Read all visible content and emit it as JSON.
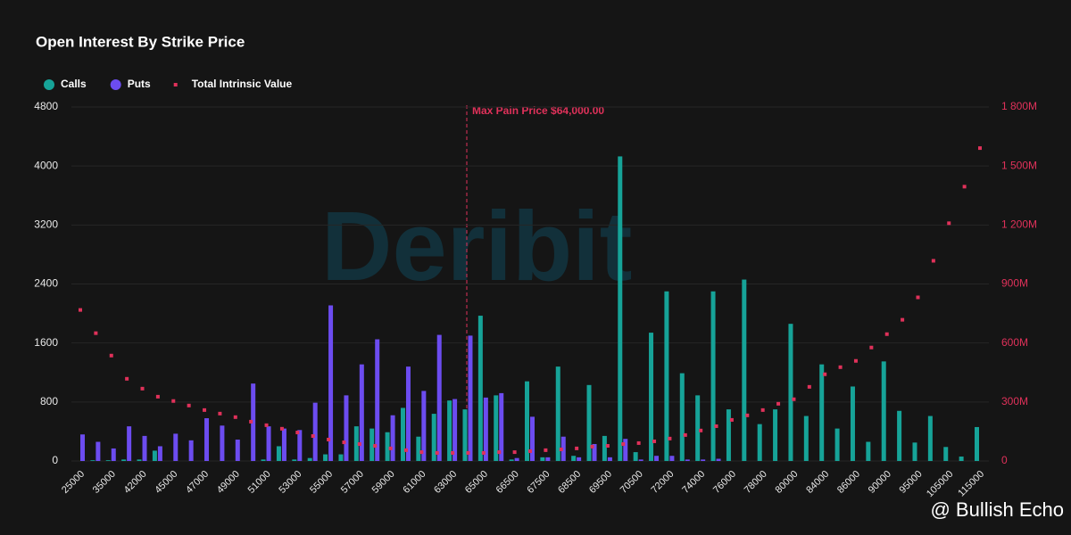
{
  "chart_data": {
    "type": "bar",
    "title": "Open Interest By Strike Price",
    "annotation": "Max Pain Price $64,000.00",
    "watermarks": [
      "Deribit",
      "@ Bullish Echo"
    ],
    "categories": [
      "25000",
      null,
      "35000",
      null,
      "42000",
      null,
      "45000",
      null,
      "47000",
      null,
      "49000",
      null,
      "51000",
      null,
      "53000",
      null,
      "55000",
      null,
      "57000",
      null,
      "59000",
      null,
      "61000",
      null,
      "63000",
      null,
      "65000",
      null,
      "66500",
      null,
      "67500",
      null,
      "68500",
      null,
      "69500",
      null,
      "70500",
      null,
      "72000",
      null,
      "74000",
      null,
      "76000",
      null,
      "78000",
      null,
      "80000",
      null,
      "84000",
      null,
      "86000",
      null,
      "90000",
      null,
      "95000",
      null,
      "105000",
      null,
      "115000"
    ],
    "series": [
      {
        "name": "Calls",
        "color": "#16a398",
        "values": [
          0,
          10,
          10,
          20,
          20,
          140,
          0,
          0,
          0,
          0,
          0,
          0,
          20,
          200,
          20,
          40,
          90,
          90,
          470,
          440,
          390,
          720,
          330,
          640,
          820,
          700,
          1970,
          890,
          20,
          1080,
          50,
          1280,
          70,
          1030,
          340,
          4130,
          120,
          1740,
          2300,
          1190,
          890,
          2300,
          700,
          2460,
          500,
          700,
          1860,
          610,
          1310,
          440,
          1010,
          260,
          1350,
          680,
          250,
          610,
          190,
          60,
          460
        ]
      },
      {
        "name": "Puts",
        "color": "#6c4cf0",
        "values": [
          360,
          260,
          170,
          470,
          340,
          200,
          370,
          280,
          580,
          480,
          290,
          1050,
          470,
          440,
          420,
          790,
          2110,
          890,
          1310,
          1650,
          620,
          1280,
          950,
          1710,
          840,
          1700,
          860,
          920,
          40,
          600,
          50,
          330,
          50,
          230,
          50,
          300,
          20,
          70,
          70,
          20,
          20,
          30,
          0,
          0,
          0,
          0,
          0,
          0,
          0,
          0,
          0,
          0,
          0,
          0,
          0,
          0,
          0,
          0,
          0
        ]
      },
      {
        "name": "Total Intrinsic Value",
        "color": "#e0315a",
        "axis": "y2",
        "values": [
          768,
          650,
          536,
          418,
          368,
          327,
          305,
          282,
          259,
          241,
          223,
          200,
          182,
          164,
          145,
          127,
          109,
          95,
          86,
          77,
          64,
          55,
          45,
          41,
          41,
          41,
          41,
          45,
          45,
          50,
          55,
          59,
          64,
          73,
          77,
          86,
          91,
          100,
          114,
          132,
          155,
          177,
          209,
          232,
          259,
          291,
          314,
          377,
          441,
          477,
          509,
          577,
          645,
          718,
          832,
          1018,
          1209,
          1395,
          1591
        ]
      }
    ],
    "ylim": [
      0,
      4800
    ],
    "yticks": [
      0,
      800,
      1600,
      2400,
      3200,
      4000,
      4800
    ],
    "y2lim": [
      0,
      1800
    ],
    "y2ticks": [
      0,
      {
        "value": 300,
        "label": "300M"
      },
      {
        "value": 600,
        "label": "600M"
      },
      {
        "value": 900,
        "label": "900M"
      },
      {
        "value": 1200,
        "label": "1 200M"
      },
      {
        "value": 1500,
        "label": "1 500M"
      },
      {
        "value": 1800,
        "label": "1 800M"
      }
    ],
    "grid": true
  }
}
